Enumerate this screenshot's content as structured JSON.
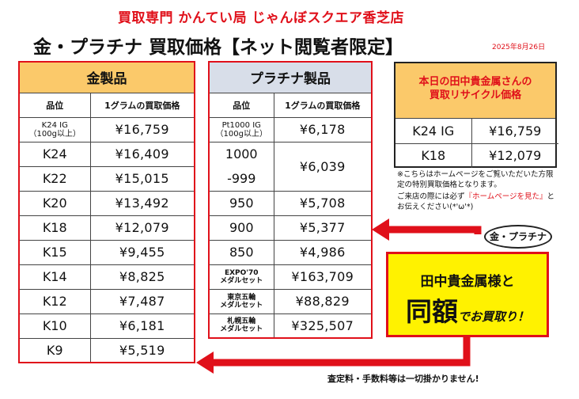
{
  "header": {
    "store_name": "買取専門 かんてい局 じゃんぼスクエア香芝店",
    "title": "金・プラチナ 買取価格【ネット閲覧者限定】",
    "date": "2025年8月26日"
  },
  "gold_table": {
    "title": "金製品",
    "col_name": "品位",
    "col_price": "1グラムの買取価格",
    "rows": [
      {
        "name": "K24 IG\n（100g以上）",
        "price": "¥16,759",
        "small": true
      },
      {
        "name": "K24",
        "price": "¥16,409"
      },
      {
        "name": "K22",
        "price": "¥15,015"
      },
      {
        "name": "K20",
        "price": "¥13,492"
      },
      {
        "name": "K18",
        "price": "¥12,079"
      },
      {
        "name": "K15",
        "price": "¥9,455"
      },
      {
        "name": "K14",
        "price": "¥8,825"
      },
      {
        "name": "K12",
        "price": "¥7,487"
      },
      {
        "name": "K10",
        "price": "¥6,181"
      },
      {
        "name": "K9",
        "price": "¥5,519"
      }
    ]
  },
  "plat_table": {
    "title": "プラチナ製品",
    "col_name": "品位",
    "col_price": "1グラムの買取価格",
    "r_ig_name": "Pt1000 IG\n（100g以上）",
    "r_ig_price": "¥6,178",
    "r_1000_name": "1000",
    "r_999_name": "-999",
    "r_1000_price": "¥6,039",
    "r_950_name": "950",
    "r_950_price": "¥5,708",
    "r_900_name": "900",
    "r_900_price": "¥5,377",
    "r_850_name": "850",
    "r_850_price": "¥4,986",
    "r_expo_name": "EXPO'70\nメダルセット",
    "r_expo_price": "¥163,709",
    "r_tokyo_name": "東京五輪\nメダルセット",
    "r_tokyo_price": "¥88,829",
    "r_sapporo_name": "札幌五輪\nメダルセット",
    "r_sapporo_price": "¥325,507"
  },
  "info_box": {
    "title": "本日の田中貴金属さんの\n買取リサイクル価格",
    "rows": [
      {
        "name": "K24 IG",
        "price": "¥16,759"
      },
      {
        "name": "K18",
        "price": "¥12,079"
      }
    ]
  },
  "notes": {
    "note1": "※こちらはホームページをご覧いただいた方限定の特別買取価格となります。",
    "note2_a": "ご来店の際には必ず",
    "note2_red": "『ホームページを見た』",
    "note2_b": "とお伝えください(*'ω'*)"
  },
  "promo": {
    "bubble": "金・プラチナ",
    "line1": "田中貴金属様と",
    "big": "同額",
    "rest": "でお買取り！"
  },
  "footer": "査定料・手数料等は一切掛かりません!",
  "colors": {
    "accent_red": "#e0101a",
    "gold_header": "#fbc96a",
    "platinum_header": "#d8dee9",
    "promo_yellow": "#fff200"
  }
}
